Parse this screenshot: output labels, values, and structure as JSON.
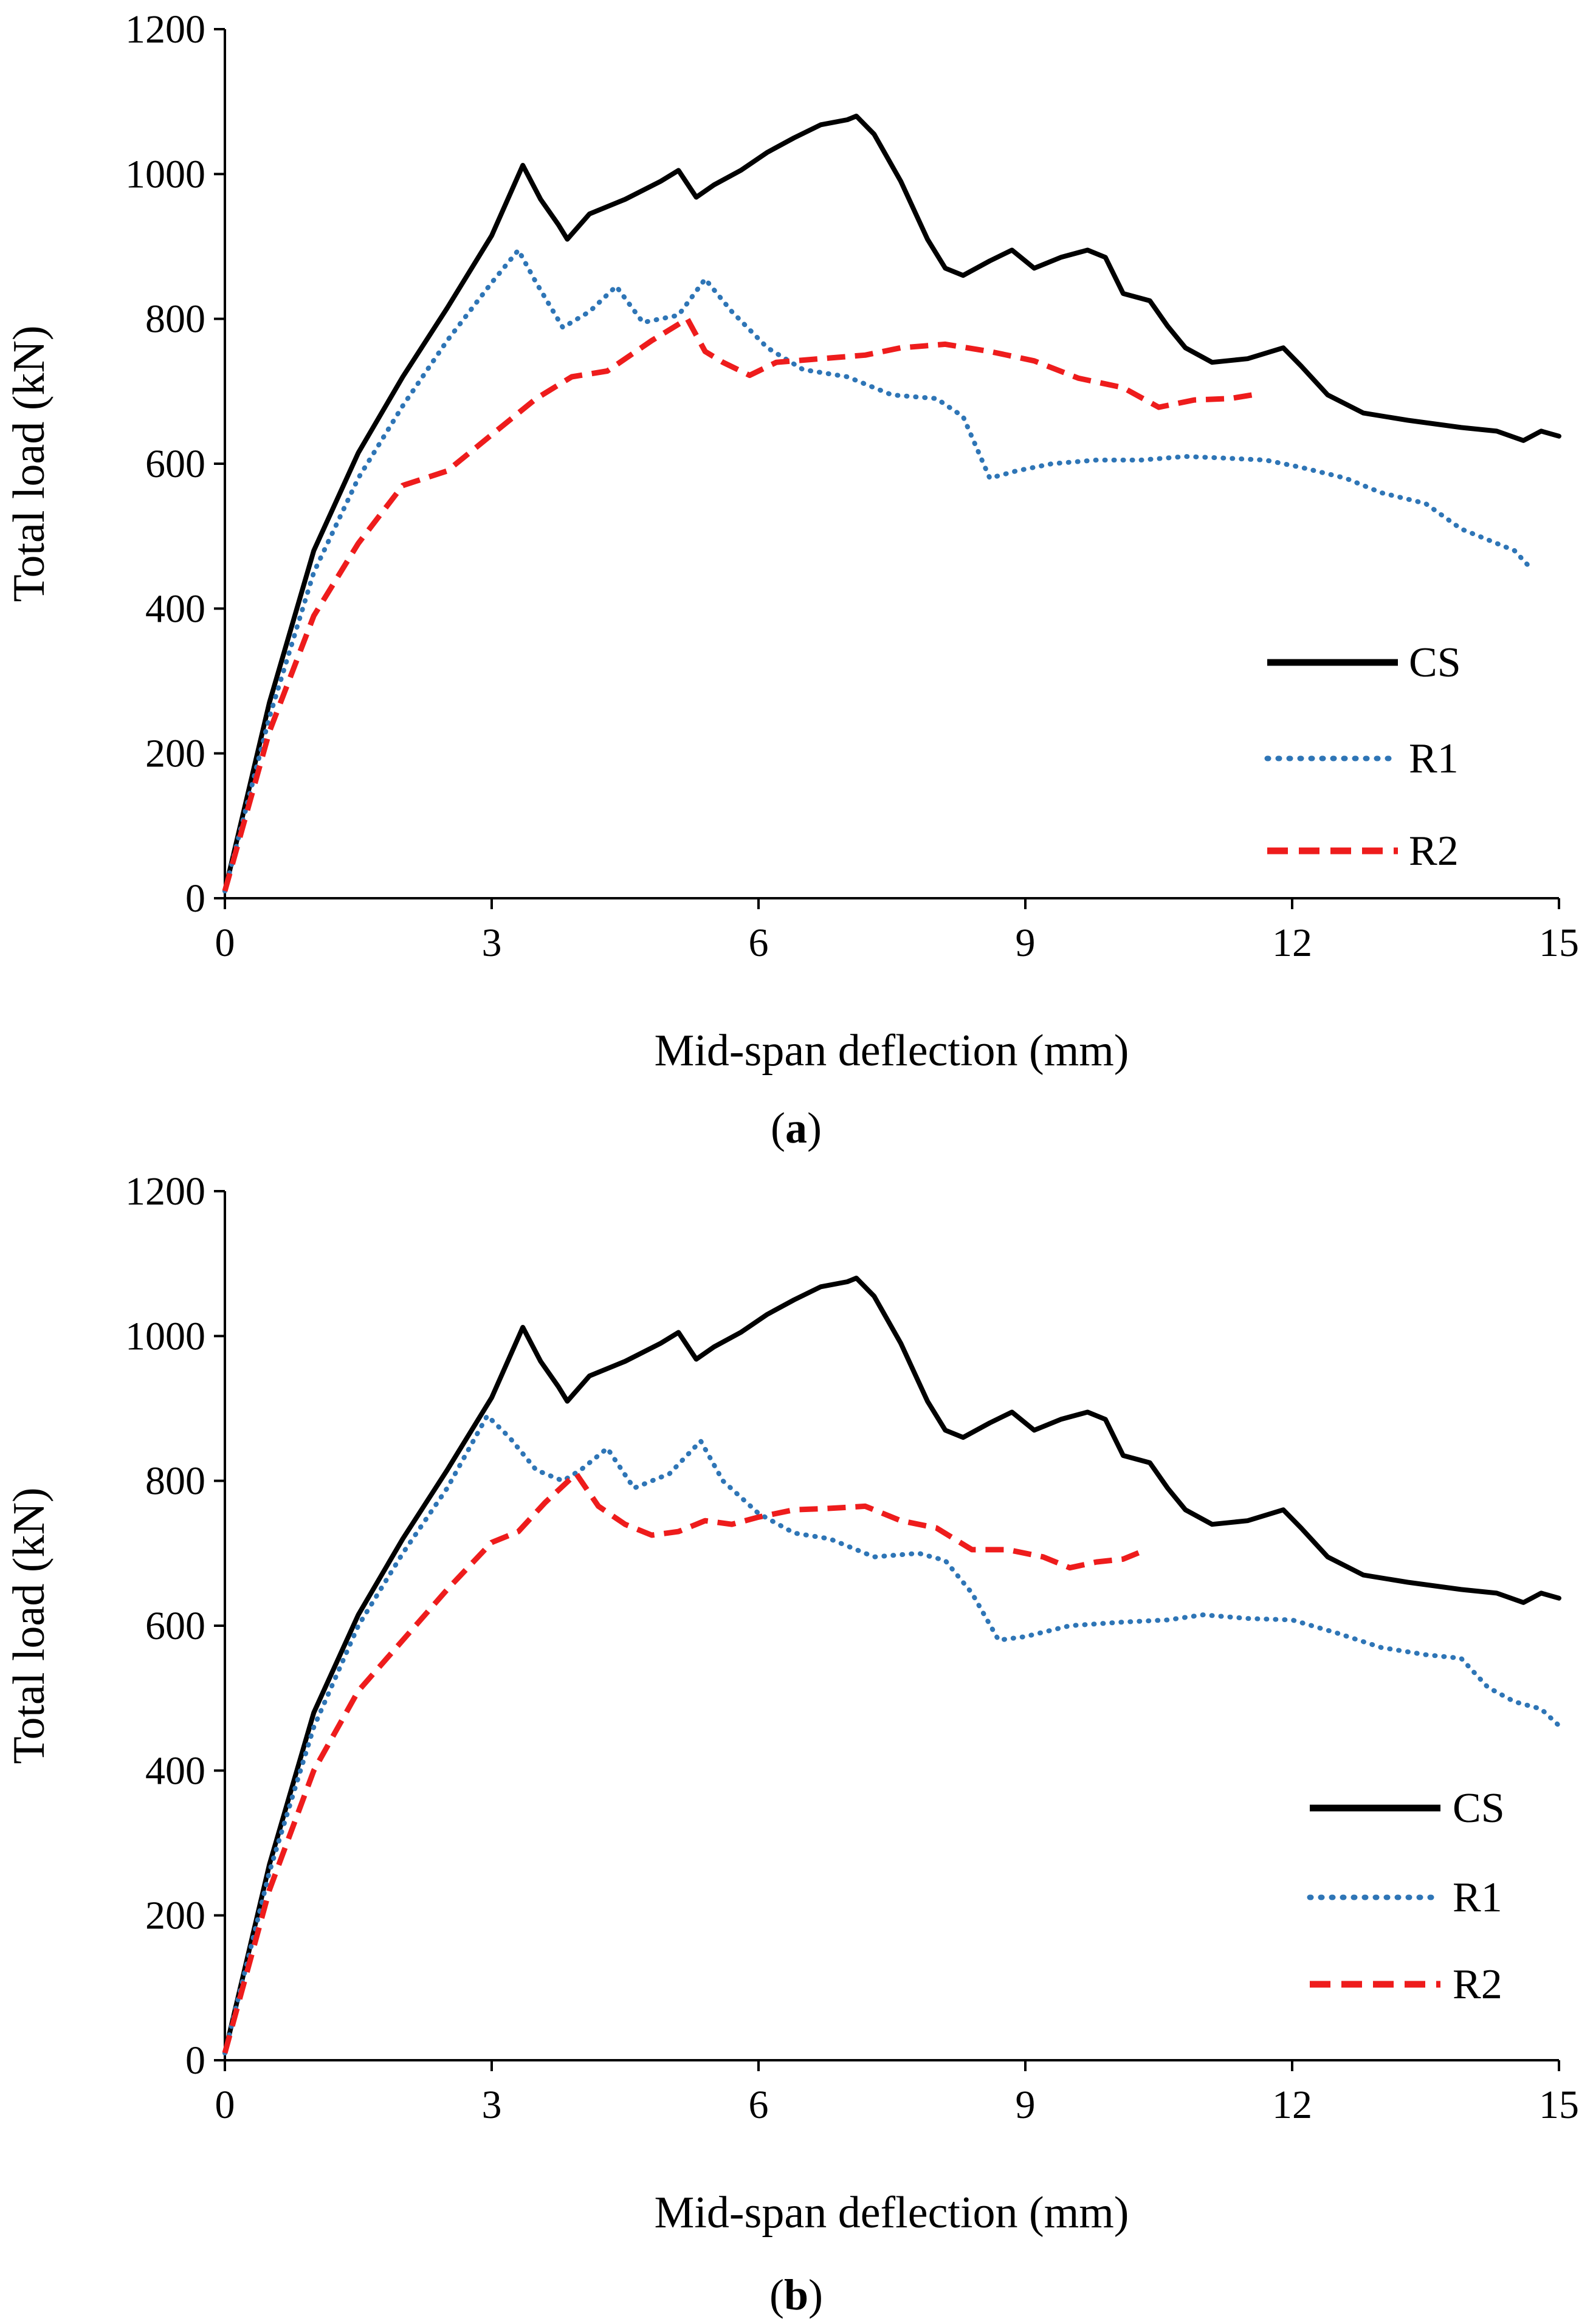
{
  "chart_data": [
    {
      "id": "a",
      "type": "line",
      "caption": "a",
      "xlabel": "Mid-span deflection (mm)",
      "ylabel": "Total load (kN)",
      "xlim": [
        0,
        15
      ],
      "ylim": [
        0,
        1200
      ],
      "xticks": [
        0,
        3,
        6,
        9,
        12,
        15
      ],
      "yticks": [
        0,
        200,
        400,
        600,
        800,
        1000,
        1200
      ],
      "grid": false,
      "legend_position": "right",
      "series": [
        {
          "name": "CS",
          "color": "#000000",
          "style": "solid",
          "points": [
            [
              0,
              10
            ],
            [
              0.5,
              270
            ],
            [
              1,
              480
            ],
            [
              1.5,
              615
            ],
            [
              2,
              720
            ],
            [
              2.5,
              815
            ],
            [
              3,
              915
            ],
            [
              3.35,
              1012
            ],
            [
              3.55,
              965
            ],
            [
              3.75,
              930
            ],
            [
              3.85,
              910
            ],
            [
              4.1,
              945
            ],
            [
              4.5,
              965
            ],
            [
              4.9,
              990
            ],
            [
              5.1,
              1005
            ],
            [
              5.3,
              968
            ],
            [
              5.5,
              985
            ],
            [
              5.8,
              1005
            ],
            [
              6.1,
              1030
            ],
            [
              6.4,
              1050
            ],
            [
              6.7,
              1068
            ],
            [
              7.0,
              1075
            ],
            [
              7.1,
              1080
            ],
            [
              7.3,
              1055
            ],
            [
              7.6,
              990
            ],
            [
              7.9,
              910
            ],
            [
              8.1,
              870
            ],
            [
              8.3,
              860
            ],
            [
              8.6,
              880
            ],
            [
              8.85,
              895
            ],
            [
              9.1,
              870
            ],
            [
              9.4,
              885
            ],
            [
              9.7,
              895
            ],
            [
              9.9,
              885
            ],
            [
              10.1,
              835
            ],
            [
              10.4,
              825
            ],
            [
              10.6,
              790
            ],
            [
              10.8,
              760
            ],
            [
              11.1,
              740
            ],
            [
              11.5,
              745
            ],
            [
              11.9,
              760
            ],
            [
              12.1,
              735
            ],
            [
              12.4,
              695
            ],
            [
              12.8,
              670
            ],
            [
              13.3,
              660
            ],
            [
              13.9,
              650
            ],
            [
              14.3,
              645
            ],
            [
              14.6,
              632
            ],
            [
              14.8,
              645
            ],
            [
              15,
              638
            ]
          ]
        },
        {
          "name": "R1",
          "color": "#2e75b6",
          "style": "dotted",
          "points": [
            [
              0,
              10
            ],
            [
              0.5,
              250
            ],
            [
              1,
              450
            ],
            [
              1.5,
              580
            ],
            [
              2,
              680
            ],
            [
              2.5,
              770
            ],
            [
              3,
              850
            ],
            [
              3.3,
              895
            ],
            [
              3.5,
              850
            ],
            [
              3.8,
              788
            ],
            [
              4.1,
              810
            ],
            [
              4.4,
              845
            ],
            [
              4.7,
              795
            ],
            [
              5.1,
              805
            ],
            [
              5.4,
              855
            ],
            [
              5.7,
              810
            ],
            [
              6.1,
              760
            ],
            [
              6.5,
              730
            ],
            [
              7.0,
              720
            ],
            [
              7.5,
              695
            ],
            [
              8.0,
              690
            ],
            [
              8.3,
              665
            ],
            [
              8.6,
              580
            ],
            [
              8.9,
              590
            ],
            [
              9.3,
              600
            ],
            [
              9.8,
              605
            ],
            [
              10.3,
              605
            ],
            [
              10.8,
              610
            ],
            [
              11.2,
              608
            ],
            [
              11.7,
              605
            ],
            [
              12.1,
              595
            ],
            [
              12.6,
              580
            ],
            [
              13.0,
              560
            ],
            [
              13.5,
              545
            ],
            [
              13.9,
              510
            ],
            [
              14.2,
              495
            ],
            [
              14.5,
              480
            ],
            [
              14.65,
              460
            ]
          ]
        },
        {
          "name": "R2",
          "color": "#ee1c1c",
          "style": "dashed",
          "points": [
            [
              0,
              10
            ],
            [
              0.5,
              230
            ],
            [
              1,
              390
            ],
            [
              1.5,
              490
            ],
            [
              2,
              570
            ],
            [
              2.5,
              590
            ],
            [
              3,
              640
            ],
            [
              3.5,
              690
            ],
            [
              3.9,
              720
            ],
            [
              4.3,
              728
            ],
            [
              4.8,
              770
            ],
            [
              5.2,
              800
            ],
            [
              5.4,
              755
            ],
            [
              5.6,
              740
            ],
            [
              5.9,
              722
            ],
            [
              6.2,
              740
            ],
            [
              6.7,
              745
            ],
            [
              7.2,
              750
            ],
            [
              7.6,
              760
            ],
            [
              8.1,
              765
            ],
            [
              8.6,
              755
            ],
            [
              9.1,
              742
            ],
            [
              9.6,
              718
            ],
            [
              10.1,
              705
            ],
            [
              10.5,
              678
            ],
            [
              10.9,
              688
            ],
            [
              11.3,
              690
            ],
            [
              11.55,
              695
            ]
          ]
        }
      ]
    },
    {
      "id": "b",
      "type": "line",
      "caption": "b",
      "xlabel": "Mid-span deflection (mm)",
      "ylabel": "Total load (kN)",
      "xlim": [
        0,
        15
      ],
      "ylim": [
        0,
        1200
      ],
      "xticks": [
        0,
        3,
        6,
        9,
        12,
        15
      ],
      "yticks": [
        0,
        200,
        400,
        600,
        800,
        1000,
        1200
      ],
      "grid": false,
      "legend_position": "right",
      "series": [
        {
          "name": "CS",
          "color": "#000000",
          "style": "solid",
          "points": [
            [
              0,
              10
            ],
            [
              0.5,
              270
            ],
            [
              1,
              480
            ],
            [
              1.5,
              615
            ],
            [
              2,
              720
            ],
            [
              2.5,
              815
            ],
            [
              3,
              915
            ],
            [
              3.35,
              1012
            ],
            [
              3.55,
              965
            ],
            [
              3.75,
              930
            ],
            [
              3.85,
              910
            ],
            [
              4.1,
              945
            ],
            [
              4.5,
              965
            ],
            [
              4.9,
              990
            ],
            [
              5.1,
              1005
            ],
            [
              5.3,
              968
            ],
            [
              5.5,
              985
            ],
            [
              5.8,
              1005
            ],
            [
              6.1,
              1030
            ],
            [
              6.4,
              1050
            ],
            [
              6.7,
              1068
            ],
            [
              7.0,
              1075
            ],
            [
              7.1,
              1080
            ],
            [
              7.3,
              1055
            ],
            [
              7.6,
              990
            ],
            [
              7.9,
              910
            ],
            [
              8.1,
              870
            ],
            [
              8.3,
              860
            ],
            [
              8.6,
              880
            ],
            [
              8.85,
              895
            ],
            [
              9.1,
              870
            ],
            [
              9.4,
              885
            ],
            [
              9.7,
              895
            ],
            [
              9.9,
              885
            ],
            [
              10.1,
              835
            ],
            [
              10.4,
              825
            ],
            [
              10.6,
              790
            ],
            [
              10.8,
              760
            ],
            [
              11.1,
              740
            ],
            [
              11.5,
              745
            ],
            [
              11.9,
              760
            ],
            [
              12.1,
              735
            ],
            [
              12.4,
              695
            ],
            [
              12.8,
              670
            ],
            [
              13.3,
              660
            ],
            [
              13.9,
              650
            ],
            [
              14.3,
              645
            ],
            [
              14.6,
              632
            ],
            [
              14.8,
              645
            ],
            [
              15,
              638
            ]
          ]
        },
        {
          "name": "R1",
          "color": "#2e75b6",
          "style": "dotted",
          "points": [
            [
              0,
              10
            ],
            [
              0.5,
              260
            ],
            [
              1,
              460
            ],
            [
              1.5,
              600
            ],
            [
              2,
              700
            ],
            [
              2.5,
              790
            ],
            [
              2.95,
              890
            ],
            [
              3.2,
              860
            ],
            [
              3.5,
              815
            ],
            [
              3.8,
              800
            ],
            [
              4.0,
              815
            ],
            [
              4.3,
              845
            ],
            [
              4.6,
              790
            ],
            [
              5.0,
              810
            ],
            [
              5.35,
              855
            ],
            [
              5.6,
              800
            ],
            [
              6.0,
              755
            ],
            [
              6.4,
              728
            ],
            [
              6.8,
              720
            ],
            [
              7.3,
              695
            ],
            [
              7.8,
              700
            ],
            [
              8.1,
              690
            ],
            [
              8.4,
              645
            ],
            [
              8.7,
              580
            ],
            [
              9.0,
              585
            ],
            [
              9.5,
              600
            ],
            [
              10.1,
              605
            ],
            [
              10.6,
              608
            ],
            [
              11.0,
              615
            ],
            [
              11.5,
              610
            ],
            [
              12.0,
              608
            ],
            [
              12.5,
              590
            ],
            [
              13.0,
              570
            ],
            [
              13.5,
              560
            ],
            [
              13.9,
              555
            ],
            [
              14.2,
              515
            ],
            [
              14.5,
              495
            ],
            [
              14.8,
              485
            ],
            [
              15.0,
              462
            ]
          ]
        },
        {
          "name": "R2",
          "color": "#ee1c1c",
          "style": "dashed",
          "points": [
            [
              0,
              10
            ],
            [
              0.5,
              235
            ],
            [
              1,
              400
            ],
            [
              1.5,
              510
            ],
            [
              2,
              580
            ],
            [
              2.5,
              650
            ],
            [
              3,
              715
            ],
            [
              3.3,
              730
            ],
            [
              3.6,
              770
            ],
            [
              3.95,
              810
            ],
            [
              4.2,
              765
            ],
            [
              4.5,
              740
            ],
            [
              4.8,
              725
            ],
            [
              5.1,
              730
            ],
            [
              5.4,
              745
            ],
            [
              5.7,
              740
            ],
            [
              6.0,
              750
            ],
            [
              6.4,
              760
            ],
            [
              6.8,
              762
            ],
            [
              7.2,
              765
            ],
            [
              7.6,
              745
            ],
            [
              8.0,
              735
            ],
            [
              8.4,
              705
            ],
            [
              8.8,
              705
            ],
            [
              9.2,
              695
            ],
            [
              9.5,
              680
            ],
            [
              9.8,
              688
            ],
            [
              10.1,
              692
            ],
            [
              10.3,
              702
            ]
          ]
        }
      ]
    }
  ]
}
